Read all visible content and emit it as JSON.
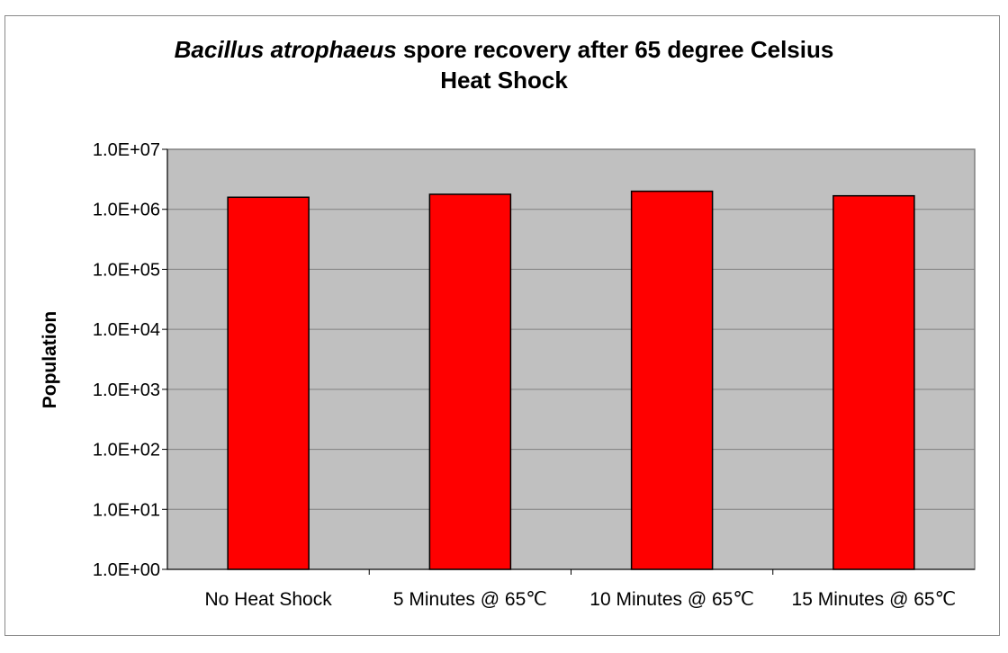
{
  "chart_data": {
    "type": "bar",
    "title_italic": "Bacillus atrophaeus",
    "title_rest": " spore recovery after 65 degree Celsius",
    "title_line2": "Heat Shock",
    "xlabel": "",
    "ylabel": "Population",
    "yscale": "log",
    "ylim": [
      1,
      10000000
    ],
    "yticks": [
      "1.0E+00",
      "1.0E+01",
      "1.0E+02",
      "1.0E+03",
      "1.0E+04",
      "1.0E+05",
      "1.0E+06",
      "1.0E+07"
    ],
    "categories": [
      "No Heat Shock",
      "5 Minutes @ 65℃",
      "10 Minutes @ 65℃",
      "15 Minutes @ 65℃"
    ],
    "values": [
      1590000,
      1780000,
      2000000,
      1680000
    ],
    "grid": true,
    "legend": "none",
    "colors": {
      "bar": "#ff0000",
      "plot_bg": "#c0c0c0",
      "grid": "#808080"
    }
  }
}
